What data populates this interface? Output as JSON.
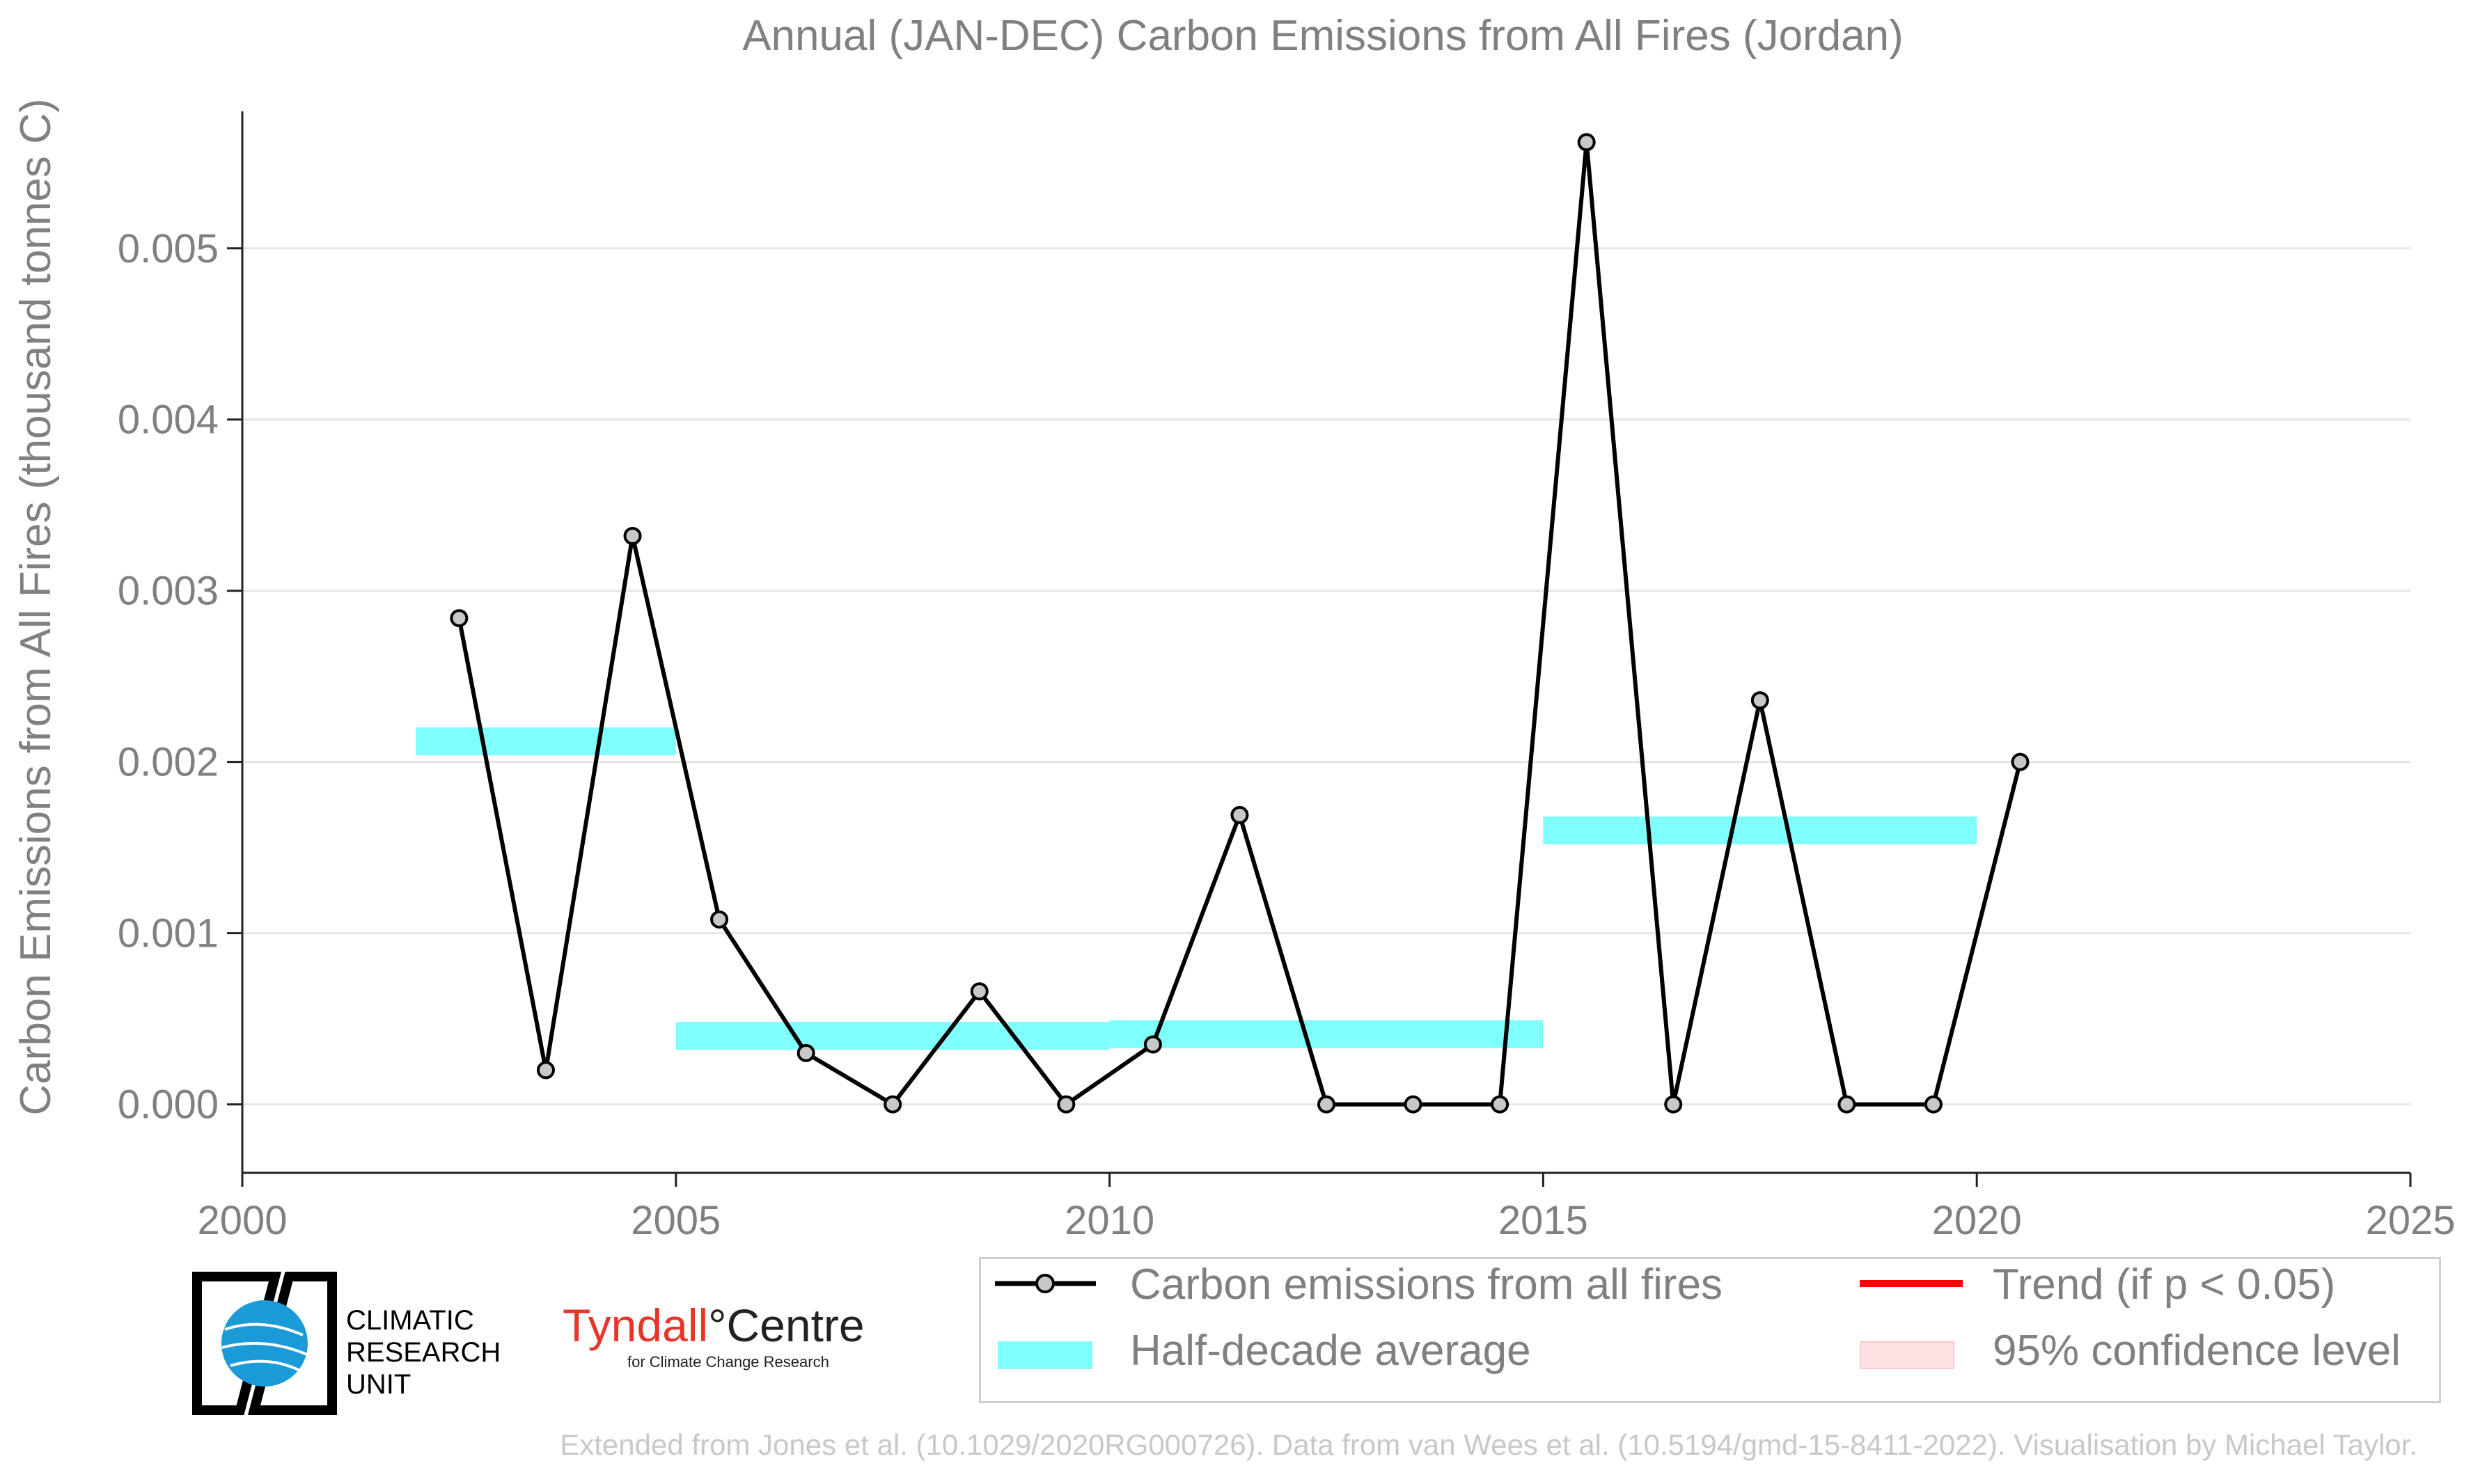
{
  "chart_data": {
    "type": "line",
    "title": "Annual (JAN-DEC) Carbon Emissions from All Fires (Jordan)",
    "ylabel": "Carbon Emissions from All Fires (thousand tonnes C)",
    "xlabel": "",
    "xlim": [
      2000,
      2025
    ],
    "ylim": [
      -0.0004,
      0.0058
    ],
    "x_ticks": [
      "2000",
      "2005",
      "2010",
      "2015",
      "2020",
      "2025"
    ],
    "y_ticks": [
      "0.000",
      "0.001",
      "0.002",
      "0.003",
      "0.004",
      "0.005"
    ],
    "grid": "horizontal",
    "series": [
      {
        "name": "Carbon emissions from all fires",
        "color": "#000000",
        "marker_color": "#c8c8c8",
        "x": [
          2002.5,
          2003.5,
          2004.5,
          2005.5,
          2006.5,
          2007.5,
          2008.5,
          2009.5,
          2010.5,
          2011.5,
          2012.5,
          2013.5,
          2014.5,
          2015.5,
          2016.5,
          2017.5,
          2018.5,
          2019.5,
          2020.5
        ],
        "y": [
          0.00284,
          0.0002,
          0.00332,
          0.00108,
          0.0003,
          0.0,
          0.00066,
          0.0,
          0.00035,
          0.00169,
          0.0,
          0.0,
          0.0,
          0.00562,
          0.0,
          0.00236,
          0.0,
          0.0,
          0.002
        ]
      }
    ],
    "half_decade_average": {
      "name": "Half-decade average",
      "color": "#80ffff",
      "segments": [
        {
          "x0": 2002,
          "x1": 2005,
          "y": 0.00212
        },
        {
          "x0": 2005,
          "x1": 2010,
          "y": 0.0004
        },
        {
          "x0": 2010,
          "x1": 2015,
          "y": 0.00041
        },
        {
          "x0": 2015,
          "x1": 2020,
          "y": 0.0016
        }
      ]
    },
    "legend": {
      "placement": "bottom-right",
      "entries": [
        {
          "label": "Carbon emissions from all fires",
          "color": "#000000"
        },
        {
          "label": "Trend (if p < 0.05)",
          "color": "#ff0000"
        },
        {
          "label": "Half-decade average",
          "color": "#80ffff"
        },
        {
          "label": "95% confidence level",
          "color": "#ffe0e3"
        }
      ]
    }
  },
  "logos": {
    "cru_lines": [
      "CLIMATIC",
      "RESEARCH",
      "UNIT"
    ],
    "tyndall_a": "Tyndall",
    "tyndall_b": "°Centre",
    "tyndall_sub": "for Climate Change Research"
  },
  "credit": "Extended from Jones et al. (10.1029/2020RG000726). Data from van Wees et al. (10.5194/gmd-15-8411-2022). Visualisation by Michael Taylor."
}
